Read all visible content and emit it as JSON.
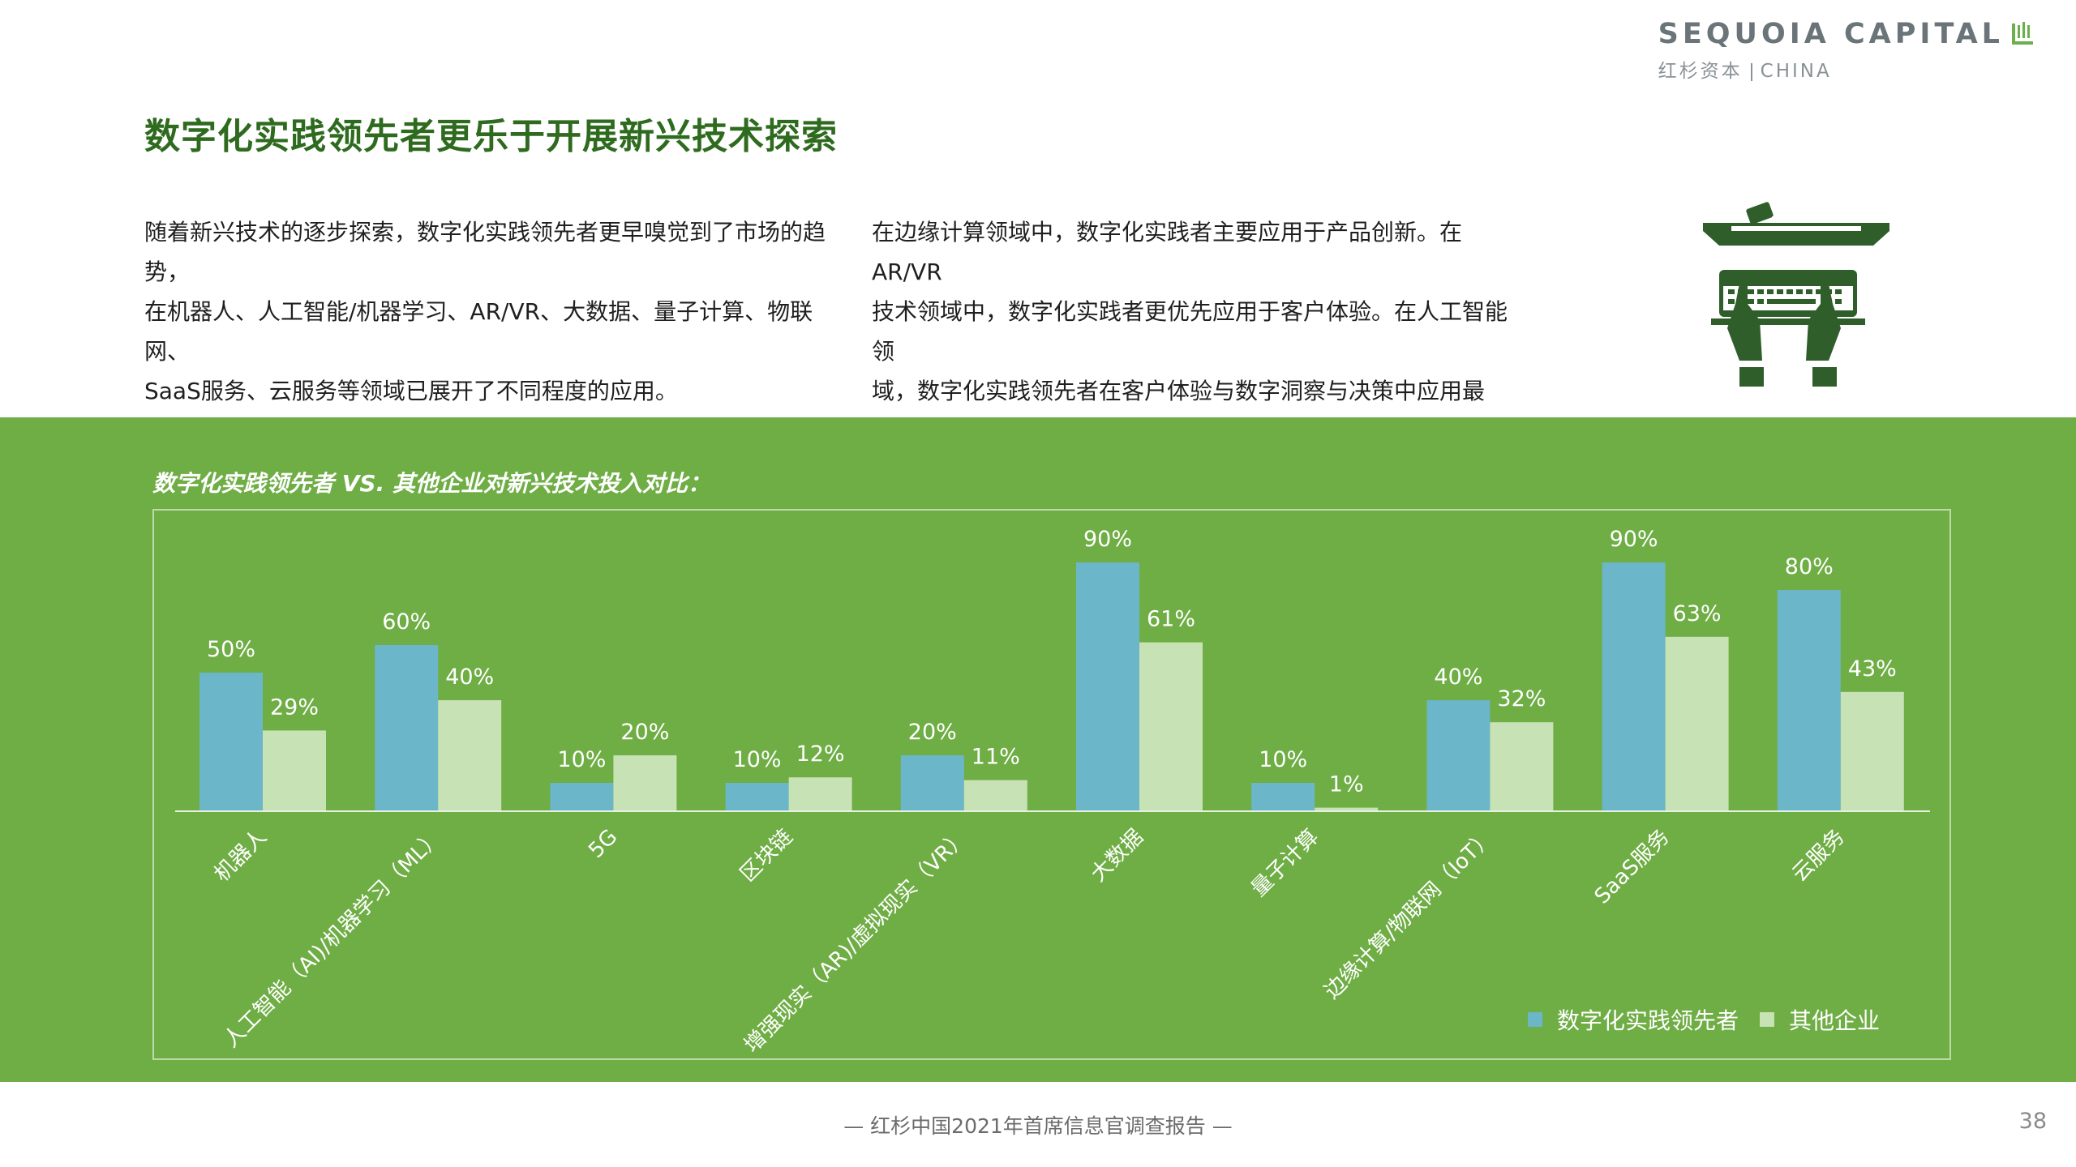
{
  "header": {
    "logo_main": "SEQUOIA CAPITAL",
    "logo_cn": "红杉资本",
    "logo_en": "CHINA",
    "title": "数字化实践领先者更乐于开展新兴技术探索"
  },
  "intro": {
    "left": "随着新兴技术的逐步探索，数字化实践领先者更早嗅觉到了市场的趋势，\n在机器人、人工智能/机器学习、AR/VR、大数据、量子计算、物联网、\nSaaS服务、云服务等领域已展开了不同程度的应用。",
    "right": "在边缘计算领域中，数字化实践者主要应用于产品创新。在AR/VR\n技术领域中，数字化实践者更优先应用于客户体验。在人工智能领\n域，数字化实践领先者在客户体验与数字洞察与决策中应用最多。"
  },
  "colors": {
    "title_green": "#2e6b1e",
    "band_green": "#6fad45",
    "leader": "#6bb6c8",
    "other": "#c7e2b5",
    "icon_green": "#2f5e2a"
  },
  "icons": {
    "illustration": "keyboard-hands-illustration-icon"
  },
  "chart_data": {
    "type": "bar",
    "title": "数字化实践领先者 VS. 其他企业对新兴技术投入对比：",
    "categories": [
      "机器人",
      "人工智能（AI)/机器学习（ML）",
      "5G",
      "区块链",
      "增强现实（AR)/虚拟现实（VR）",
      "大数据",
      "量子计算",
      "边缘计算/物联网（IoT）",
      "SaaS服务",
      "云服务"
    ],
    "series": [
      {
        "name": "数字化实践领先者",
        "values": [
          50,
          60,
          10,
          10,
          20,
          90,
          10,
          40,
          90,
          80
        ],
        "labels": [
          "50%",
          "60%",
          "10%",
          "10%",
          "20%",
          "90%",
          "10%",
          "40%",
          "90%",
          "80%"
        ]
      },
      {
        "name": "其他企业",
        "values": [
          29,
          40,
          20,
          12,
          11,
          61,
          1,
          32,
          63,
          43
        ],
        "labels": [
          "29%",
          "40%",
          "20%",
          "12%",
          "11%",
          "61%",
          "1%",
          "32%",
          "63%",
          "43%"
        ]
      }
    ],
    "unit": "%",
    "ylim": [
      0,
      100
    ],
    "grid": false,
    "legend_position": "bottom-right"
  },
  "footer": {
    "text": "— 红杉中国2021年首席信息官调查报告 —",
    "page_number": "38"
  }
}
